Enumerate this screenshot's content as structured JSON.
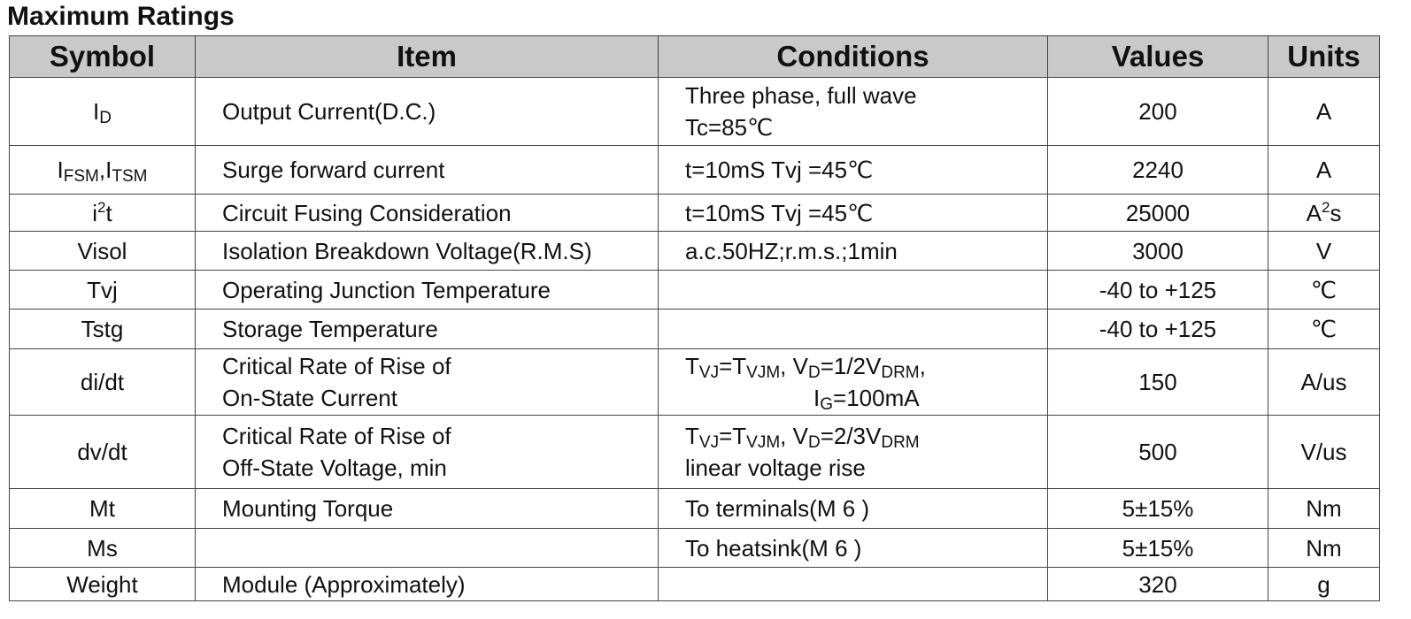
{
  "title": "Maximum Ratings",
  "table": {
    "header": [
      "Symbol",
      "Item",
      "Conditions",
      "Values",
      "Units"
    ],
    "rows": [
      [
        [
          [
            "I",
            {
              "sub": "D"
            }
          ]
        ],
        [
          "Output Current(D.C.)"
        ],
        [
          "Three phase, full wave",
          "Tc=85℃"
        ],
        [
          "200"
        ],
        [
          "A"
        ]
      ],
      [
        [
          [
            "I",
            {
              "sub": "FSM"
            },
            ",I",
            {
              "sub": "TSM"
            }
          ]
        ],
        [
          "Surge forward current"
        ],
        [
          "t=10mS Tvj =45℃"
        ],
        [
          "2240"
        ],
        [
          "A"
        ]
      ],
      [
        [
          [
            "i",
            {
              "sup": "2"
            },
            "t"
          ]
        ],
        [
          "Circuit Fusing Consideration"
        ],
        [
          "t=10mS Tvj =45℃"
        ],
        [
          "25000"
        ],
        [
          [
            "A",
            {
              "sup": "2"
            },
            "s"
          ]
        ]
      ],
      [
        [
          "Visol"
        ],
        [
          "Isolation Breakdown Voltage(R.M.S)"
        ],
        [
          "a.c.50HZ;r.m.s.;1min"
        ],
        [
          "3000"
        ],
        [
          "V"
        ]
      ],
      [
        [
          "Tvj"
        ],
        [
          "Operating Junction Temperature"
        ],
        null,
        [
          "-40 to +125"
        ],
        [
          "℃"
        ]
      ],
      [
        [
          "Tstg"
        ],
        [
          "Storage Temperature"
        ],
        null,
        [
          "-40 to +125"
        ],
        [
          "℃"
        ]
      ],
      [
        [
          "di/dt"
        ],
        [
          "Critical Rate of Rise of",
          "On-State Current"
        ],
        [
          [
            "T",
            {
              "sub": "VJ"
            },
            "=T",
            {
              "sub": "VJM"
            },
            ",  V",
            {
              "sub": "D"
            },
            "=1/2V",
            {
              "sub": "DRM"
            },
            ","
          ],
          [
            "I",
            {
              "sub": "G"
            },
            "=100mA"
          ]
        ],
        [
          "150"
        ],
        [
          "A/us"
        ]
      ],
      [
        [
          "dv/dt"
        ],
        [
          "Critical Rate of Rise of",
          "Off-State Voltage, min"
        ],
        [
          [
            "T",
            {
              "sub": "VJ"
            },
            "=T",
            {
              "sub": "VJM"
            },
            ", V",
            {
              "sub": "D"
            },
            "=2/3V",
            {
              "sub": "DRM"
            }
          ],
          "linear voltage rise"
        ],
        [
          "500"
        ],
        [
          "V/us"
        ]
      ],
      [
        [
          "Mt"
        ],
        [
          "Mounting Torque"
        ],
        [
          "To terminals(M 6 )"
        ],
        [
          "5±15%"
        ],
        [
          "Nm"
        ]
      ],
      [
        [
          "Ms"
        ],
        null,
        [
          "To heatsink(M 6 )"
        ],
        [
          "5±15%"
        ],
        [
          "Nm"
        ]
      ],
      [
        [
          "Weight"
        ],
        [
          "Module (Approximately)"
        ],
        null,
        [
          "320"
        ],
        [
          "g"
        ]
      ]
    ]
  }
}
